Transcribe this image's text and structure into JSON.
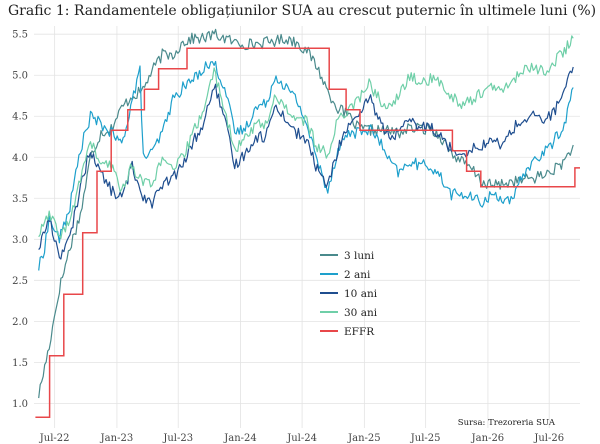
{
  "chart_data": {
    "type": "line",
    "title": "Grafic 1: Randamentele obligațiunilor SUA au crescut puternic în ultimele luni (%)",
    "source": "Sursa: Trezoreria SUA",
    "xlabel": "",
    "ylabel": "",
    "ylim": [
      0.7,
      5.6
    ],
    "xlim": [
      "2022-05-01",
      "2026-09-30"
    ],
    "grid": true,
    "legend_position": "center",
    "yticks": [
      1.0,
      1.5,
      2.0,
      2.5,
      3.0,
      3.5,
      4.0,
      4.5,
      5.0,
      5.5
    ],
    "ytick_labels": [
      "1.0",
      "1.5",
      "2.0",
      "2.5",
      "3.0",
      "3.5",
      "4.0",
      "4.5",
      "5.0",
      "5.5"
    ],
    "xticks": [
      "2022-07-01",
      "2023-01-01",
      "2023-07-01",
      "2024-01-01",
      "2024-07-01",
      "2025-01-01",
      "2025-07-01",
      "2026-01-01",
      "2026-07-01"
    ],
    "xtick_labels": [
      "Jul-22",
      "Jan-23",
      "Jul-23",
      "Jan-24",
      "Jul-24",
      "Jan-25",
      "Jul-25",
      "Jan-26",
      "Jul-26"
    ],
    "series": [
      {
        "name": "3 luni",
        "color": "#4a8a8c",
        "points": [
          [
            "2022-05-15",
            1.1
          ],
          [
            "2022-06-15",
            1.7
          ],
          [
            "2022-07-15",
            2.4
          ],
          [
            "2022-08-15",
            2.9
          ],
          [
            "2022-09-15",
            3.3
          ],
          [
            "2022-10-15",
            4.0
          ],
          [
            "2022-11-15",
            4.3
          ],
          [
            "2022-12-15",
            4.35
          ],
          [
            "2023-01-15",
            4.6
          ],
          [
            "2023-02-15",
            4.75
          ],
          [
            "2023-03-15",
            4.8
          ],
          [
            "2023-04-15",
            5.05
          ],
          [
            "2023-05-15",
            5.25
          ],
          [
            "2023-06-15",
            5.25
          ],
          [
            "2023-07-15",
            5.4
          ],
          [
            "2023-08-15",
            5.45
          ],
          [
            "2023-09-15",
            5.45
          ],
          [
            "2023-10-15",
            5.5
          ],
          [
            "2023-11-15",
            5.45
          ],
          [
            "2023-12-15",
            5.4
          ],
          [
            "2024-01-15",
            5.38
          ],
          [
            "2024-02-15",
            5.38
          ],
          [
            "2024-03-15",
            5.4
          ],
          [
            "2024-04-15",
            5.42
          ],
          [
            "2024-05-15",
            5.45
          ],
          [
            "2024-06-15",
            5.4
          ],
          [
            "2024-07-15",
            5.3
          ],
          [
            "2024-08-15",
            5.1
          ],
          [
            "2024-09-15",
            4.8
          ],
          [
            "2024-10-15",
            4.6
          ],
          [
            "2024-11-15",
            4.5
          ],
          [
            "2024-12-15",
            4.35
          ],
          [
            "2025-01-15",
            4.33
          ],
          [
            "2025-02-15",
            4.33
          ],
          [
            "2025-03-15",
            4.32
          ],
          [
            "2025-04-15",
            4.3
          ],
          [
            "2025-05-15",
            4.35
          ],
          [
            "2025-06-15",
            4.35
          ],
          [
            "2025-07-15",
            4.35
          ],
          [
            "2025-08-15",
            4.25
          ],
          [
            "2025-09-15",
            4.05
          ],
          [
            "2025-10-15",
            3.95
          ],
          [
            "2025-11-15",
            3.85
          ],
          [
            "2025-12-15",
            3.7
          ],
          [
            "2026-01-15",
            3.65
          ],
          [
            "2026-02-15",
            3.68
          ],
          [
            "2026-03-15",
            3.7
          ],
          [
            "2026-04-15",
            3.72
          ],
          [
            "2026-05-15",
            3.75
          ],
          [
            "2026-06-15",
            3.78
          ],
          [
            "2026-07-15",
            3.85
          ],
          [
            "2026-08-15",
            3.95
          ],
          [
            "2026-09-10",
            4.15
          ]
        ]
      },
      {
        "name": "2 ani",
        "color": "#1ea0cc",
        "points": [
          [
            "2022-05-15",
            2.65
          ],
          [
            "2022-06-01",
            2.9
          ],
          [
            "2022-06-15",
            3.25
          ],
          [
            "2022-07-15",
            3.0
          ],
          [
            "2022-08-15",
            3.4
          ],
          [
            "2022-09-15",
            4.1
          ],
          [
            "2022-10-15",
            4.5
          ],
          [
            "2022-11-15",
            4.4
          ],
          [
            "2022-12-15",
            4.3
          ],
          [
            "2023-01-15",
            4.15
          ],
          [
            "2023-02-15",
            4.7
          ],
          [
            "2023-03-10",
            5.05
          ],
          [
            "2023-03-20",
            4.0
          ],
          [
            "2023-04-15",
            4.05
          ],
          [
            "2023-05-15",
            4.3
          ],
          [
            "2023-06-15",
            4.7
          ],
          [
            "2023-07-15",
            4.85
          ],
          [
            "2023-08-15",
            4.95
          ],
          [
            "2023-09-15",
            5.1
          ],
          [
            "2023-10-15",
            5.15
          ],
          [
            "2023-11-15",
            4.85
          ],
          [
            "2023-12-15",
            4.3
          ],
          [
            "2024-01-15",
            4.35
          ],
          [
            "2024-02-15",
            4.6
          ],
          [
            "2024-03-15",
            4.65
          ],
          [
            "2024-04-15",
            5.0
          ],
          [
            "2024-05-15",
            4.85
          ],
          [
            "2024-06-15",
            4.7
          ],
          [
            "2024-07-15",
            4.4
          ],
          [
            "2024-08-15",
            3.95
          ],
          [
            "2024-09-15",
            3.6
          ],
          [
            "2024-10-15",
            4.1
          ],
          [
            "2024-11-15",
            4.3
          ],
          [
            "2024-12-15",
            4.3
          ],
          [
            "2025-01-15",
            4.35
          ],
          [
            "2025-02-15",
            4.2
          ],
          [
            "2025-03-15",
            3.95
          ],
          [
            "2025-04-15",
            3.8
          ],
          [
            "2025-05-15",
            3.95
          ],
          [
            "2025-06-15",
            3.9
          ],
          [
            "2025-07-15",
            3.9
          ],
          [
            "2025-08-15",
            3.75
          ],
          [
            "2025-09-15",
            3.55
          ],
          [
            "2025-10-15",
            3.55
          ],
          [
            "2025-11-15",
            3.5
          ],
          [
            "2025-12-15",
            3.45
          ],
          [
            "2026-01-15",
            3.55
          ],
          [
            "2026-02-15",
            3.5
          ],
          [
            "2026-03-15",
            3.45
          ],
          [
            "2026-04-15",
            3.8
          ],
          [
            "2026-05-15",
            3.95
          ],
          [
            "2026-06-15",
            4.05
          ],
          [
            "2026-07-15",
            4.2
          ],
          [
            "2026-08-15",
            4.4
          ],
          [
            "2026-09-10",
            4.85
          ]
        ]
      },
      {
        "name": "10 ani",
        "color": "#1f4e8f",
        "points": [
          [
            "2022-05-15",
            2.9
          ],
          [
            "2022-06-15",
            3.25
          ],
          [
            "2022-07-15",
            2.8
          ],
          [
            "2022-08-15",
            3.0
          ],
          [
            "2022-09-15",
            3.65
          ],
          [
            "2022-10-15",
            4.1
          ],
          [
            "2022-11-15",
            3.8
          ],
          [
            "2022-12-15",
            3.6
          ],
          [
            "2023-01-15",
            3.5
          ],
          [
            "2023-02-15",
            3.9
          ],
          [
            "2023-03-15",
            3.55
          ],
          [
            "2023-04-15",
            3.45
          ],
          [
            "2023-05-15",
            3.65
          ],
          [
            "2023-06-15",
            3.75
          ],
          [
            "2023-07-15",
            3.9
          ],
          [
            "2023-08-15",
            4.2
          ],
          [
            "2023-09-15",
            4.4
          ],
          [
            "2023-10-15",
            4.9
          ],
          [
            "2023-11-15",
            4.45
          ],
          [
            "2023-12-15",
            3.9
          ],
          [
            "2024-01-15",
            4.05
          ],
          [
            "2024-02-15",
            4.25
          ],
          [
            "2024-03-15",
            4.25
          ],
          [
            "2024-04-15",
            4.65
          ],
          [
            "2024-05-15",
            4.45
          ],
          [
            "2024-06-15",
            4.3
          ],
          [
            "2024-07-15",
            4.2
          ],
          [
            "2024-08-15",
            3.85
          ],
          [
            "2024-09-15",
            3.65
          ],
          [
            "2024-10-15",
            4.1
          ],
          [
            "2024-11-15",
            4.4
          ],
          [
            "2024-12-15",
            4.45
          ],
          [
            "2025-01-15",
            4.75
          ],
          [
            "2025-02-15",
            4.45
          ],
          [
            "2025-03-15",
            4.25
          ],
          [
            "2025-04-15",
            4.3
          ],
          [
            "2025-05-15",
            4.45
          ],
          [
            "2025-06-15",
            4.35
          ],
          [
            "2025-07-15",
            4.4
          ],
          [
            "2025-08-15",
            4.25
          ],
          [
            "2025-09-15",
            4.1
          ],
          [
            "2025-10-15",
            4.05
          ],
          [
            "2025-11-15",
            4.1
          ],
          [
            "2025-12-15",
            4.15
          ],
          [
            "2026-01-15",
            4.2
          ],
          [
            "2026-02-15",
            4.15
          ],
          [
            "2026-03-15",
            4.35
          ],
          [
            "2026-04-15",
            4.45
          ],
          [
            "2026-05-15",
            4.5
          ],
          [
            "2026-06-15",
            4.45
          ],
          [
            "2026-07-15",
            4.55
          ],
          [
            "2026-08-15",
            4.8
          ],
          [
            "2026-09-10",
            5.1
          ]
        ]
      },
      {
        "name": "30 ani",
        "color": "#6fcfa8",
        "points": [
          [
            "2022-05-15",
            3.05
          ],
          [
            "2022-06-15",
            3.3
          ],
          [
            "2022-07-15",
            3.05
          ],
          [
            "2022-08-15",
            3.2
          ],
          [
            "2022-09-15",
            3.75
          ],
          [
            "2022-10-15",
            4.2
          ],
          [
            "2022-11-15",
            3.9
          ],
          [
            "2022-12-15",
            3.9
          ],
          [
            "2023-01-15",
            3.6
          ],
          [
            "2023-02-15",
            3.9
          ],
          [
            "2023-03-15",
            3.7
          ],
          [
            "2023-04-15",
            3.7
          ],
          [
            "2023-05-15",
            3.95
          ],
          [
            "2023-06-15",
            3.85
          ],
          [
            "2023-07-15",
            4.0
          ],
          [
            "2023-08-15",
            4.3
          ],
          [
            "2023-09-15",
            4.6
          ],
          [
            "2023-10-15",
            5.05
          ],
          [
            "2023-11-15",
            4.6
          ],
          [
            "2023-12-15",
            4.05
          ],
          [
            "2024-01-15",
            4.25
          ],
          [
            "2024-02-15",
            4.4
          ],
          [
            "2024-03-15",
            4.4
          ],
          [
            "2024-04-15",
            4.75
          ],
          [
            "2024-05-15",
            4.6
          ],
          [
            "2024-06-15",
            4.45
          ],
          [
            "2024-07-15",
            4.45
          ],
          [
            "2024-08-15",
            4.1
          ],
          [
            "2024-09-15",
            4.05
          ],
          [
            "2024-10-15",
            4.45
          ],
          [
            "2024-11-15",
            4.6
          ],
          [
            "2024-12-15",
            4.7
          ],
          [
            "2025-01-15",
            4.9
          ],
          [
            "2025-02-15",
            4.7
          ],
          [
            "2025-03-15",
            4.6
          ],
          [
            "2025-04-15",
            4.75
          ],
          [
            "2025-05-15",
            5.0
          ],
          [
            "2025-06-15",
            4.9
          ],
          [
            "2025-07-15",
            4.95
          ],
          [
            "2025-08-15",
            4.9
          ],
          [
            "2025-09-15",
            4.75
          ],
          [
            "2025-10-15",
            4.65
          ],
          [
            "2025-11-15",
            4.7
          ],
          [
            "2025-12-15",
            4.8
          ],
          [
            "2026-01-15",
            4.85
          ],
          [
            "2026-02-15",
            4.8
          ],
          [
            "2026-03-15",
            4.95
          ],
          [
            "2026-04-15",
            5.05
          ],
          [
            "2026-05-15",
            5.1
          ],
          [
            "2026-06-15",
            5.05
          ],
          [
            "2026-07-15",
            5.15
          ],
          [
            "2026-08-15",
            5.3
          ],
          [
            "2026-09-10",
            5.45
          ]
        ]
      },
      {
        "name": "EFFR",
        "color": "#e8474a",
        "step": true,
        "points": [
          [
            "2022-05-05",
            0.83
          ],
          [
            "2022-06-16",
            1.58
          ],
          [
            "2022-07-28",
            2.33
          ],
          [
            "2022-09-22",
            3.08
          ],
          [
            "2022-11-03",
            3.83
          ],
          [
            "2022-12-15",
            4.33
          ],
          [
            "2023-02-02",
            4.58
          ],
          [
            "2023-03-23",
            4.83
          ],
          [
            "2023-05-04",
            5.08
          ],
          [
            "2023-07-27",
            5.33
          ],
          [
            "2024-09-19",
            4.83
          ],
          [
            "2024-11-08",
            4.58
          ],
          [
            "2024-12-19",
            4.33
          ],
          [
            "2025-09-18",
            4.08
          ],
          [
            "2025-10-30",
            3.83
          ],
          [
            "2025-12-11",
            3.64
          ],
          [
            "2026-09-15",
            3.87
          ],
          [
            "2026-09-30",
            3.87
          ]
        ]
      }
    ]
  }
}
